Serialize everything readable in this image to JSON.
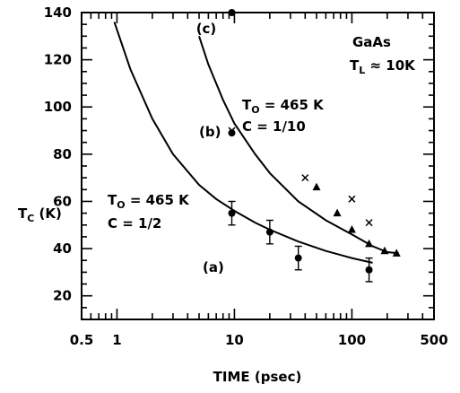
{
  "chart_data": {
    "type": "scatter",
    "xlabel": "TIME (psec)",
    "ylabel_main": "T",
    "ylabel_sub": "C",
    "ylabel_unit": " (K)",
    "xscale": "log",
    "xlim": [
      0.5,
      500
    ],
    "ylim": [
      10,
      140
    ],
    "x_tick_labels": [
      "0.5",
      "1",
      "10",
      "100",
      "500"
    ],
    "y_tick_labels": [
      "20",
      "40",
      "60",
      "80",
      "100",
      "120",
      "140"
    ],
    "series": [
      {
        "name": "",
        "marker": "circle",
        "points": [
          {
            "x": 9.5,
            "y": 55,
            "err": 5
          },
          {
            "x": 20,
            "y": 47,
            "err": 5
          },
          {
            "x": 35,
            "y": 36,
            "err": 5
          },
          {
            "x": 140,
            "y": 31,
            "err": 5
          },
          {
            "x": 9.5,
            "y": 89,
            "err": 0
          },
          {
            "x": 9.5,
            "y": 140,
            "err": 0
          }
        ]
      },
      {
        "name": "",
        "marker": "x",
        "points": [
          {
            "x": 9.5,
            "y": 90
          },
          {
            "x": 40,
            "y": 70
          },
          {
            "x": 100,
            "y": 61
          },
          {
            "x": 140,
            "y": 51
          }
        ]
      },
      {
        "name": "",
        "marker": "triangle",
        "points": [
          {
            "x": 50,
            "y": 66
          },
          {
            "x": 75,
            "y": 55
          },
          {
            "x": 100,
            "y": 48
          },
          {
            "x": 140,
            "y": 42
          },
          {
            "x": 190,
            "y": 39
          },
          {
            "x": 240,
            "y": 38
          }
        ]
      }
    ],
    "curves": [
      {
        "name": "",
        "points": [
          [
            0.95,
            136
          ],
          [
            1.3,
            116
          ],
          [
            2,
            95
          ],
          [
            3,
            80
          ],
          [
            5,
            67
          ],
          [
            7,
            61
          ],
          [
            10,
            56
          ],
          [
            15,
            51
          ],
          [
            20,
            48
          ],
          [
            35,
            43
          ],
          [
            60,
            39
          ],
          [
            100,
            36
          ],
          [
            150,
            34
          ]
        ]
      },
      {
        "name": "",
        "points": [
          [
            5,
            130
          ],
          [
            6,
            118
          ],
          [
            7,
            110
          ],
          [
            8,
            103
          ],
          [
            10,
            93
          ],
          [
            15,
            80
          ],
          [
            20,
            72
          ],
          [
            35,
            60
          ],
          [
            60,
            52
          ],
          [
            100,
            46
          ],
          [
            150,
            41
          ],
          [
            200,
            38.5
          ],
          [
            250,
            38
          ]
        ]
      }
    ],
    "annotations": {
      "label_c": "(c)",
      "label_b": "(b)",
      "label_a": "(a)",
      "material": "GaAs",
      "lattice_main": "T",
      "lattice_sub": "L",
      "lattice_rest": " ≈ 10K",
      "curve2_t0_main": "T",
      "curve2_t0_sub": "O",
      "curve2_t0_rest": " = 465 K",
      "curve2_c": "C = 1/10",
      "curve1_t0_main": "T",
      "curve1_t0_sub": "O",
      "curve1_t0_rest": " = 465 K",
      "curve1_c": "C = 1/2"
    }
  }
}
